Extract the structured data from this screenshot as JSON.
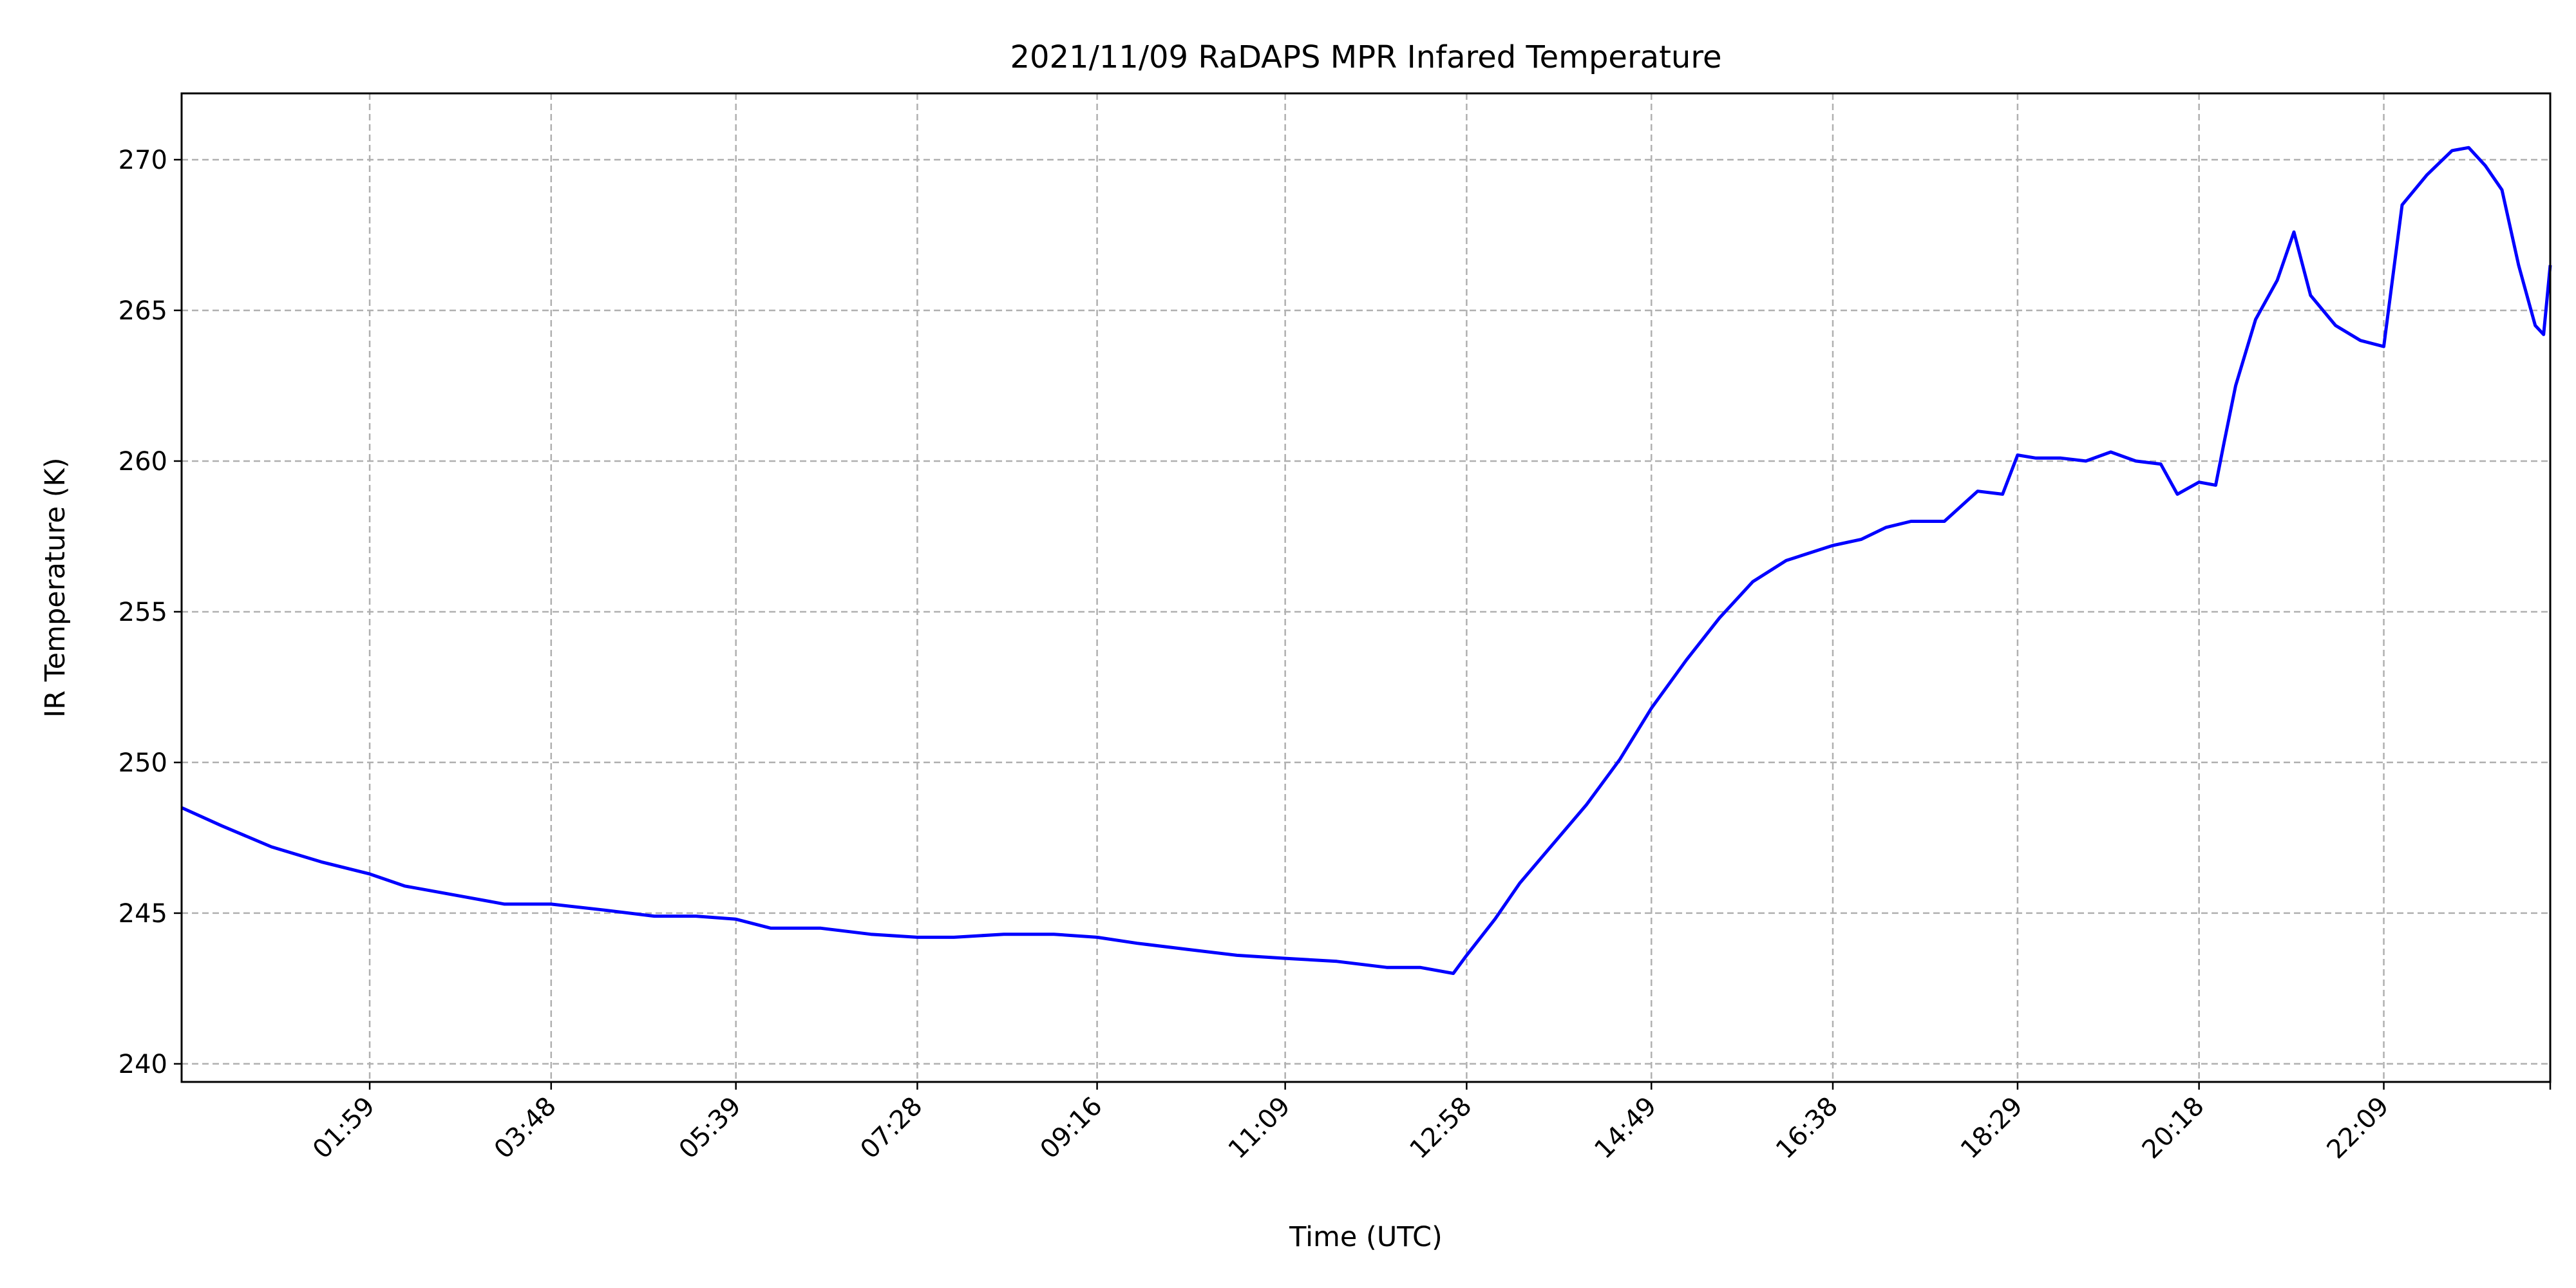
{
  "chart_data": {
    "type": "line",
    "title": "2021/11/09 RaDAPS MPR Infared Temperature",
    "xlabel": "Time (UTC)",
    "ylabel": "IR Temperature (K)",
    "x_tick_labels": [
      "01:59",
      "03:48",
      "05:39",
      "07:28",
      "09:16",
      "11:09",
      "12:58",
      "14:49",
      "16:38",
      "18:29",
      "20:18",
      "22:09"
    ],
    "xlim": [
      "00:06",
      "23:49"
    ],
    "ylim": [
      239.4,
      272.2
    ],
    "yticks": [
      240,
      245,
      250,
      255,
      260,
      265,
      270
    ],
    "grid": true,
    "series_color": "#0000ff",
    "series": [
      {
        "x": [
          "00:06",
          "00:30",
          "01:00",
          "01:30",
          "01:59",
          "02:20",
          "02:50",
          "03:20",
          "03:48",
          "04:20",
          "04:50",
          "05:15",
          "05:39",
          "06:00",
          "06:30",
          "07:00",
          "07:28",
          "07:50",
          "08:20",
          "08:50",
          "09:16",
          "09:40",
          "10:10",
          "10:40",
          "11:09",
          "11:40",
          "12:10",
          "12:30",
          "12:50",
          "12:58",
          "13:15",
          "13:30",
          "13:50",
          "14:10",
          "14:30",
          "14:49",
          "15:10",
          "15:30",
          "15:50",
          "16:10",
          "16:38",
          "16:55",
          "17:10",
          "17:25",
          "17:45",
          "18:05",
          "18:20",
          "18:29",
          "18:40",
          "18:55",
          "19:10",
          "19:25",
          "19:40",
          "19:55",
          "20:05",
          "20:18",
          "20:28",
          "20:33",
          "20:40",
          "20:52",
          "21:05",
          "21:15",
          "21:25",
          "21:40",
          "21:55",
          "22:09",
          "22:20",
          "22:35",
          "22:50",
          "23:00",
          "23:10",
          "23:20",
          "23:30",
          "23:40",
          "23:45",
          "23:49"
        ],
        "y": [
          248.5,
          247.9,
          247.2,
          246.7,
          246.3,
          245.9,
          245.6,
          245.3,
          245.3,
          245.1,
          244.9,
          244.9,
          244.8,
          244.5,
          244.5,
          244.3,
          244.2,
          244.2,
          244.3,
          244.3,
          244.2,
          244.0,
          243.8,
          243.6,
          243.5,
          243.4,
          243.2,
          243.2,
          243.0,
          243.6,
          244.8,
          246.0,
          247.3,
          248.6,
          250.1,
          251.8,
          253.4,
          254.8,
          256.0,
          256.7,
          257.2,
          257.4,
          257.8,
          258.0,
          258.0,
          259.0,
          258.9,
          260.2,
          260.1,
          260.1,
          260.0,
          260.3,
          260.0,
          259.9,
          258.9,
          259.3,
          259.2,
          260.6,
          262.5,
          264.7,
          266.0,
          267.6,
          265.5,
          264.5,
          264.0,
          263.8,
          268.5,
          269.5,
          270.3,
          270.4,
          269.8,
          269.0,
          266.5,
          264.5,
          264.2,
          266.5
        ]
      }
    ]
  }
}
